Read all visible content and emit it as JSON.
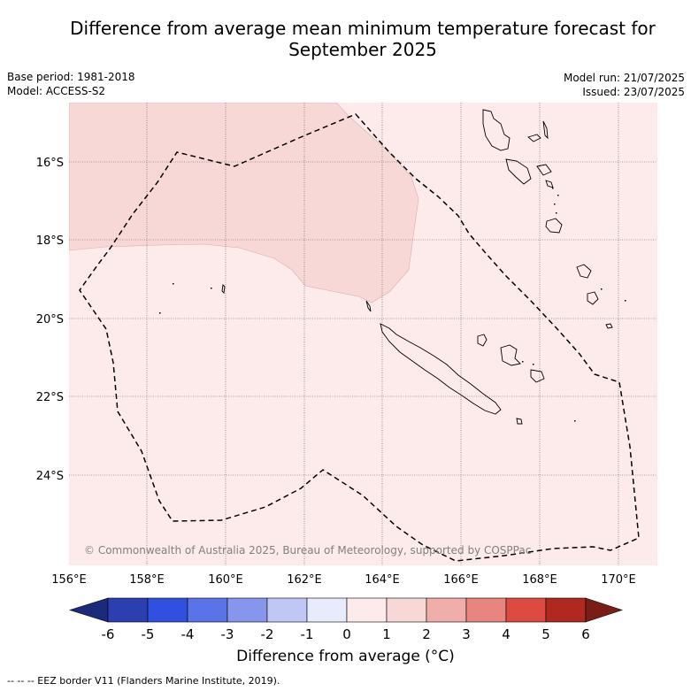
{
  "title": {
    "line1": "Difference from average mean minimum temperature forecast for",
    "line2": "September 2025"
  },
  "meta": {
    "base_period": "Base period: 1981-2018",
    "model": "Model: ACCESS-S2",
    "model_run": "Model run: 21/07/2025",
    "issued": "Issued: 23/07/2025"
  },
  "map": {
    "lat_ticks": [
      "16°S",
      "18°S",
      "20°S",
      "22°S",
      "24°S"
    ],
    "lon_ticks": [
      "156°E",
      "158°E",
      "160°E",
      "162°E",
      "164°E",
      "166°E",
      "168°E",
      "170°E"
    ],
    "copyright": "© Commonwealth of Australia 2025, Bureau of Meteorology, supported by COSPPac",
    "region_colors": {
      "outer": "#fcebea",
      "warm_zone": "#f7d8d7",
      "coast": "#000000",
      "eez": "#000000"
    }
  },
  "colorbar": {
    "labels": [
      "-6",
      "-5",
      "-4",
      "-3",
      "-2",
      "-1",
      "0",
      "1",
      "2",
      "3",
      "4",
      "5",
      "6"
    ],
    "colors": [
      "#1b2a7a",
      "#2b3fb0",
      "#3050e0",
      "#5a73e8",
      "#8596ec",
      "#c0c7f5",
      "#e8ebfb",
      "#fcebea",
      "#f7d8d7",
      "#f0aeaa",
      "#e8857e",
      "#dd4a40",
      "#b02820",
      "#7a1d16"
    ],
    "title": "Difference from average (°C)"
  },
  "footnote": "-- -- -- EEZ border V11 (Flanders Marine Institute, 2019)."
}
